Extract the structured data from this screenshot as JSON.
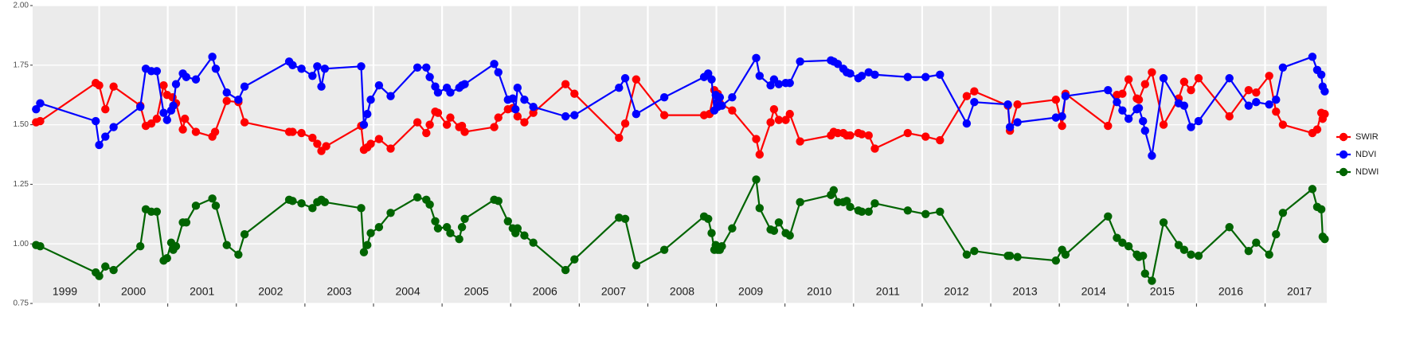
{
  "chart_data": {
    "type": "line",
    "xlim": [
      1999.03,
      2017.9
    ],
    "ylim": [
      0.75,
      2
    ],
    "yticks": [
      0.75,
      {
        "value": 1,
        "label": "1.00"
      },
      1.25,
      {
        "value": 1.5,
        "label": "1.50"
      },
      1.75,
      {
        "value": 2,
        "label": "2.00"
      }
    ],
    "xticks": [
      {
        "value": 1999.5,
        "label": "1999"
      },
      {
        "value": 2000.5,
        "label": "2000"
      },
      {
        "value": 2001.5,
        "label": "2001"
      },
      {
        "value": 2002.5,
        "label": "2002"
      },
      {
        "value": 2003.5,
        "label": "2003"
      },
      {
        "value": 2004.5,
        "label": "2004"
      },
      {
        "value": 2005.5,
        "label": "2005"
      },
      {
        "value": 2006.5,
        "label": "2006"
      },
      {
        "value": 2007.5,
        "label": "2007"
      },
      {
        "value": 2008.5,
        "label": "2008"
      },
      {
        "value": 2009.5,
        "label": "2009"
      },
      {
        "value": 2010.5,
        "label": "2010"
      },
      {
        "value": 2011.5,
        "label": "2011"
      },
      {
        "value": 2012.5,
        "label": "2012"
      },
      {
        "value": 2013.5,
        "label": "2013"
      },
      {
        "value": 2014.5,
        "label": "2014"
      },
      {
        "value": 2015.5,
        "label": "2015"
      },
      {
        "value": 2016.5,
        "label": "2016"
      },
      {
        "value": 2017.5,
        "label": "2017"
      }
    ],
    "xgrid": [
      2000,
      2001,
      2002,
      2003,
      2004,
      2005,
      2006,
      2007,
      2008,
      2009,
      2010,
      2011,
      2012,
      2013,
      2014,
      2015,
      2016,
      2017
    ],
    "grid": true,
    "legend": "right",
    "series": [
      {
        "name": "SWIR",
        "color": "#ff0000",
        "x": [
          1999.08,
          1999.14,
          1999.95,
          2000.0,
          2000.09,
          2000.21,
          2000.6,
          2000.68,
          2000.76,
          2000.84,
          2000.94,
          2000.99,
          2001.07,
          2001.12,
          2001.22,
          2001.25,
          2001.41,
          2001.65,
          2001.69,
          2001.86,
          2002.03,
          2002.12,
          2002.77,
          2002.82,
          2002.95,
          2003.11,
          2003.18,
          2003.24,
          2003.31,
          2003.82,
          2003.86,
          2003.91,
          2003.96,
          2004.08,
          2004.25,
          2004.64,
          2004.77,
          2004.82,
          2004.9,
          2004.94,
          2005.07,
          2005.12,
          2005.25,
          2005.29,
          2005.33,
          2005.76,
          2005.82,
          2005.96,
          2006.03,
          2006.1,
          2006.2,
          2006.33,
          2006.8,
          2006.93,
          2007.58,
          2007.67,
          2007.83,
          2008.24,
          2008.82,
          2008.9,
          2008.97,
          2009.02,
          2009.05,
          2009.23,
          2009.58,
          2009.63,
          2009.79,
          2009.84,
          2009.91,
          2010.01,
          2010.07,
          2010.22,
          2010.67,
          2010.71,
          2010.77,
          2010.85,
          2010.9,
          2010.95,
          2011.07,
          2011.12,
          2011.22,
          2011.31,
          2011.79,
          2012.05,
          2012.26,
          2012.65,
          2012.76,
          2013.25,
          2013.28,
          2013.39,
          2013.95,
          2014.04,
          2014.09,
          2014.71,
          2014.84,
          2014.92,
          2015.01,
          2015.13,
          2015.16,
          2015.25,
          2015.35,
          2015.52,
          2015.74,
          2015.82,
          2015.92,
          2016.03,
          2016.48,
          2016.76,
          2016.87,
          2017.06,
          2017.16,
          2017.26,
          2017.69,
          2017.76,
          2017.82,
          2017.84,
          2017.87
        ],
        "values": [
          1.51,
          1.515,
          1.675,
          1.665,
          1.565,
          1.66,
          1.58,
          1.495,
          1.505,
          1.525,
          1.665,
          1.625,
          1.615,
          1.59,
          1.48,
          1.525,
          1.47,
          1.45,
          1.47,
          1.6,
          1.595,
          1.51,
          1.47,
          1.47,
          1.465,
          1.445,
          1.42,
          1.39,
          1.41,
          1.495,
          1.395,
          1.405,
          1.42,
          1.44,
          1.4,
          1.51,
          1.465,
          1.5,
          1.555,
          1.55,
          1.5,
          1.53,
          1.49,
          1.495,
          1.47,
          1.49,
          1.53,
          1.565,
          1.57,
          1.535,
          1.51,
          1.55,
          1.67,
          1.63,
          1.445,
          1.505,
          1.69,
          1.54,
          1.54,
          1.545,
          1.645,
          1.63,
          1.59,
          1.56,
          1.44,
          1.375,
          1.51,
          1.565,
          1.52,
          1.52,
          1.545,
          1.43,
          1.455,
          1.47,
          1.465,
          1.465,
          1.455,
          1.455,
          1.465,
          1.46,
          1.455,
          1.4,
          1.465,
          1.45,
          1.435,
          1.62,
          1.64,
          1.58,
          1.475,
          1.585,
          1.605,
          1.495,
          1.63,
          1.495,
          1.625,
          1.63,
          1.69,
          1.61,
          1.605,
          1.67,
          1.72,
          1.5,
          1.61,
          1.68,
          1.645,
          1.695,
          1.535,
          1.645,
          1.635,
          1.705,
          1.555,
          1.5,
          1.465,
          1.48,
          1.55,
          1.525,
          1.545
        ]
      },
      {
        "name": "NDVI",
        "color": "#0000ff",
        "x": [
          1999.08,
          1999.14,
          1999.95,
          2000.0,
          2000.09,
          2000.21,
          2000.6,
          2000.68,
          2000.76,
          2000.84,
          2000.94,
          2000.99,
          2001.05,
          2001.08,
          2001.12,
          2001.22,
          2001.27,
          2001.41,
          2001.65,
          2001.7,
          2001.86,
          2002.03,
          2002.12,
          2002.77,
          2002.82,
          2002.95,
          2003.11,
          2003.18,
          2003.24,
          2003.29,
          2003.82,
          2003.86,
          2003.91,
          2003.96,
          2004.08,
          2004.25,
          2004.64,
          2004.77,
          2004.82,
          2004.9,
          2004.94,
          2005.07,
          2005.12,
          2005.25,
          2005.29,
          2005.33,
          2005.76,
          2005.82,
          2005.96,
          2006.03,
          2006.07,
          2006.1,
          2006.2,
          2006.33,
          2006.8,
          2006.93,
          2007.58,
          2007.67,
          2007.83,
          2008.24,
          2008.82,
          2008.88,
          2008.93,
          2008.97,
          2008.99,
          2009.02,
          2009.05,
          2009.08,
          2009.23,
          2009.58,
          2009.63,
          2009.79,
          2009.84,
          2009.91,
          2010.01,
          2010.07,
          2010.22,
          2010.67,
          2010.71,
          2010.77,
          2010.85,
          2010.9,
          2010.95,
          2011.07,
          2011.12,
          2011.22,
          2011.31,
          2011.79,
          2012.05,
          2012.26,
          2012.65,
          2012.76,
          2013.25,
          2013.28,
          2013.39,
          2013.95,
          2014.04,
          2014.09,
          2014.71,
          2014.84,
          2014.92,
          2015.01,
          2015.13,
          2015.16,
          2015.22,
          2015.25,
          2015.35,
          2015.52,
          2015.74,
          2015.82,
          2015.92,
          2016.03,
          2016.48,
          2016.76,
          2016.87,
          2017.06,
          2017.16,
          2017.26,
          2017.69,
          2017.76,
          2017.82,
          2017.84,
          2017.87
        ],
        "values": [
          1.565,
          1.59,
          1.515,
          1.415,
          1.45,
          1.49,
          1.575,
          1.735,
          1.725,
          1.725,
          1.55,
          1.52,
          1.56,
          1.58,
          1.67,
          1.715,
          1.7,
          1.69,
          1.785,
          1.735,
          1.635,
          1.605,
          1.66,
          1.765,
          1.75,
          1.735,
          1.705,
          1.745,
          1.66,
          1.735,
          1.745,
          1.5,
          1.545,
          1.605,
          1.665,
          1.62,
          1.74,
          1.74,
          1.7,
          1.66,
          1.635,
          1.655,
          1.635,
          1.655,
          1.665,
          1.67,
          1.755,
          1.72,
          1.605,
          1.61,
          1.565,
          1.655,
          1.605,
          1.575,
          1.535,
          1.54,
          1.655,
          1.695,
          1.545,
          1.615,
          1.7,
          1.715,
          1.69,
          1.56,
          1.625,
          1.575,
          1.615,
          1.58,
          1.615,
          1.78,
          1.705,
          1.665,
          1.69,
          1.67,
          1.675,
          1.675,
          1.765,
          1.77,
          1.765,
          1.755,
          1.735,
          1.72,
          1.715,
          1.695,
          1.705,
          1.72,
          1.71,
          1.7,
          1.7,
          1.71,
          1.505,
          1.595,
          1.585,
          1.49,
          1.51,
          1.53,
          1.535,
          1.62,
          1.645,
          1.595,
          1.56,
          1.525,
          1.565,
          1.57,
          1.515,
          1.475,
          1.37,
          1.695,
          1.59,
          1.58,
          1.49,
          1.515,
          1.695,
          1.58,
          1.595,
          1.585,
          1.605,
          1.74,
          1.785,
          1.73,
          1.71,
          1.66,
          1.64
        ]
      },
      {
        "name": "NDWI",
        "color": "#006400",
        "x": [
          1999.08,
          1999.14,
          1999.95,
          2000.0,
          2000.09,
          2000.21,
          2000.6,
          2000.68,
          2000.76,
          2000.84,
          2000.94,
          2000.99,
          2001.05,
          2001.08,
          2001.12,
          2001.22,
          2001.27,
          2001.41,
          2001.65,
          2001.7,
          2001.86,
          2002.03,
          2002.12,
          2002.77,
          2002.82,
          2002.95,
          2003.11,
          2003.18,
          2003.24,
          2003.29,
          2003.82,
          2003.86,
          2003.91,
          2003.96,
          2004.08,
          2004.25,
          2004.64,
          2004.77,
          2004.82,
          2004.9,
          2004.94,
          2005.07,
          2005.12,
          2005.25,
          2005.29,
          2005.33,
          2005.76,
          2005.82,
          2005.96,
          2006.03,
          2006.07,
          2006.1,
          2006.2,
          2006.33,
          2006.8,
          2006.93,
          2007.58,
          2007.67,
          2007.83,
          2008.24,
          2008.82,
          2008.88,
          2008.93,
          2008.97,
          2008.99,
          2009.02,
          2009.05,
          2009.08,
          2009.23,
          2009.58,
          2009.63,
          2009.79,
          2009.84,
          2009.91,
          2010.01,
          2010.07,
          2010.22,
          2010.67,
          2010.71,
          2010.77,
          2010.85,
          2010.9,
          2010.95,
          2011.07,
          2011.12,
          2011.22,
          2011.31,
          2011.79,
          2012.05,
          2012.26,
          2012.65,
          2012.76,
          2013.25,
          2013.28,
          2013.39,
          2013.95,
          2014.04,
          2014.09,
          2014.71,
          2014.84,
          2014.92,
          2015.01,
          2015.13,
          2015.16,
          2015.22,
          2015.25,
          2015.35,
          2015.52,
          2015.74,
          2015.82,
          2015.92,
          2016.03,
          2016.48,
          2016.76,
          2016.87,
          2017.06,
          2017.16,
          2017.26,
          2017.69,
          2017.76,
          2017.82,
          2017.84,
          2017.87
        ],
        "values": [
          0.995,
          0.99,
          0.88,
          0.865,
          0.905,
          0.89,
          0.99,
          1.145,
          1.135,
          1.135,
          0.93,
          0.94,
          1.005,
          0.975,
          0.99,
          1.09,
          1.09,
          1.16,
          1.19,
          1.16,
          0.995,
          0.955,
          1.04,
          1.185,
          1.18,
          1.17,
          1.15,
          1.175,
          1.185,
          1.175,
          1.15,
          0.965,
          0.995,
          1.045,
          1.07,
          1.13,
          1.195,
          1.185,
          1.165,
          1.095,
          1.065,
          1.07,
          1.045,
          1.02,
          1.07,
          1.105,
          1.185,
          1.18,
          1.095,
          1.065,
          1.045,
          1.065,
          1.035,
          1.005,
          0.89,
          0.935,
          1.11,
          1.105,
          0.91,
          0.975,
          1.115,
          1.105,
          1.045,
          0.975,
          0.995,
          0.975,
          0.975,
          0.99,
          1.065,
          1.27,
          1.15,
          1.06,
          1.055,
          1.09,
          1.045,
          1.035,
          1.175,
          1.205,
          1.225,
          1.175,
          1.175,
          1.18,
          1.155,
          1.14,
          1.135,
          1.135,
          1.17,
          1.14,
          1.125,
          1.135,
          0.955,
          0.97,
          0.95,
          0.95,
          0.945,
          0.93,
          0.975,
          0.955,
          1.115,
          1.025,
          1.005,
          0.99,
          0.955,
          0.945,
          0.95,
          0.875,
          0.845,
          1.09,
          0.995,
          0.975,
          0.955,
          0.95,
          1.07,
          0.97,
          1.005,
          0.955,
          1.04,
          1.13,
          1.23,
          1.155,
          1.145,
          1.03,
          1.02
        ]
      }
    ]
  }
}
